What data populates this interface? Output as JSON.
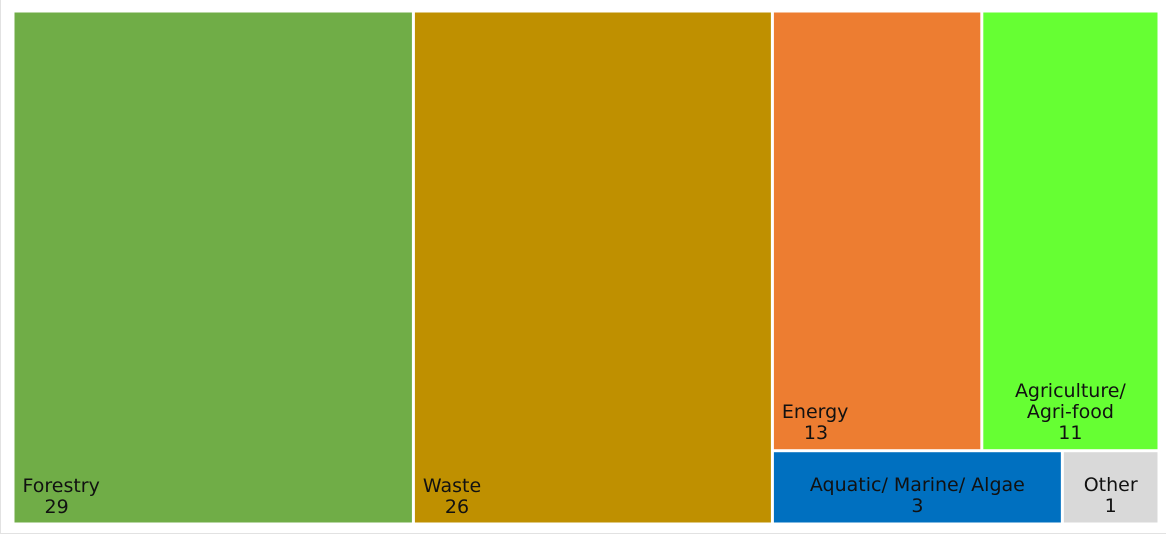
{
  "chart_data": {
    "type": "treemap",
    "title": "",
    "items": [
      {
        "name": "Forestry",
        "value": 29,
        "color": "#70AD47"
      },
      {
        "name": "Waste",
        "value": 26,
        "color": "#BF9000"
      },
      {
        "name": "Energy",
        "value": 13,
        "color": "#ED7D31"
      },
      {
        "name": "Agriculture/\nAgri-food",
        "value": 11,
        "color": "#66FF33"
      },
      {
        "name": "Aquatic/ Marine/ Algae",
        "value": 3,
        "color": "#0070C0"
      },
      {
        "name": "Other",
        "value": 1,
        "color": "#D9D9D9"
      }
    ],
    "tile_border_color": "#FFFFFF"
  }
}
